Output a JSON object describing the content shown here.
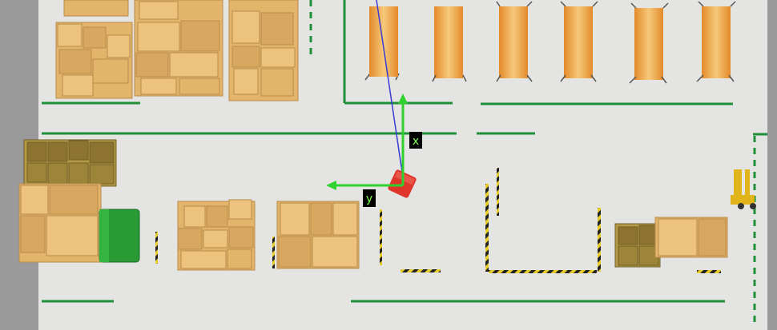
{
  "view": {
    "type": "warehouse-top-down-simulation",
    "colors": {
      "floor": "#e4e4e2",
      "wall": "#9a9a9a",
      "lane_line": "#1f8f3a",
      "box": "#e3b56b",
      "box_dark": "#c99a55",
      "robot": "#e0352b",
      "x_axis": "#2fd12f",
      "y_axis": "#2fd12f",
      "path_line": "#3a3ad6",
      "bin_green": "#2a9a35",
      "forklift": "#e1b51a",
      "hazard": "#e6cc2a"
    }
  },
  "robot": {
    "axes": {
      "x_label": "x",
      "y_label": "y"
    }
  }
}
